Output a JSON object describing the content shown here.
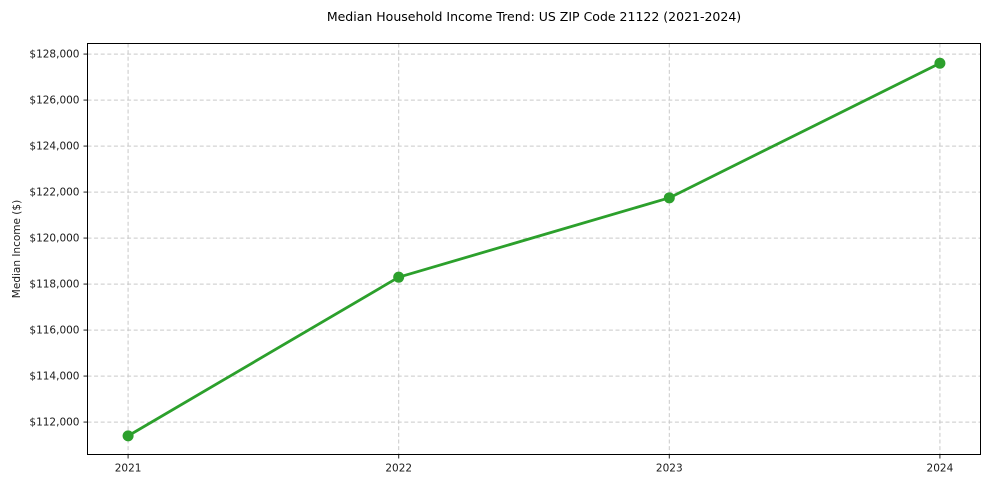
{
  "chart_data": {
    "type": "line",
    "title": "Median Household Income Trend: US ZIP Code 21122 (2021-2024)",
    "ylabel": "Median Income ($)",
    "xlabel": "",
    "categories": [
      "2021",
      "2022",
      "2023",
      "2024"
    ],
    "values": [
      111400,
      118300,
      121750,
      127600
    ],
    "y_ticks": [
      112000,
      114000,
      116000,
      118000,
      120000,
      122000,
      124000,
      126000,
      128000
    ],
    "y_tick_labels": [
      "$112,000",
      "$114,000",
      "$116,000",
      "$118,000",
      "$120,000",
      "$122,000",
      "$124,000",
      "$126,000",
      "$128,000"
    ],
    "ylim": [
      110590,
      128460
    ],
    "grid": true,
    "legend_position": "none",
    "line_color": "#2ca02c",
    "marker": "circle",
    "marker_color": "#2ca02c"
  }
}
